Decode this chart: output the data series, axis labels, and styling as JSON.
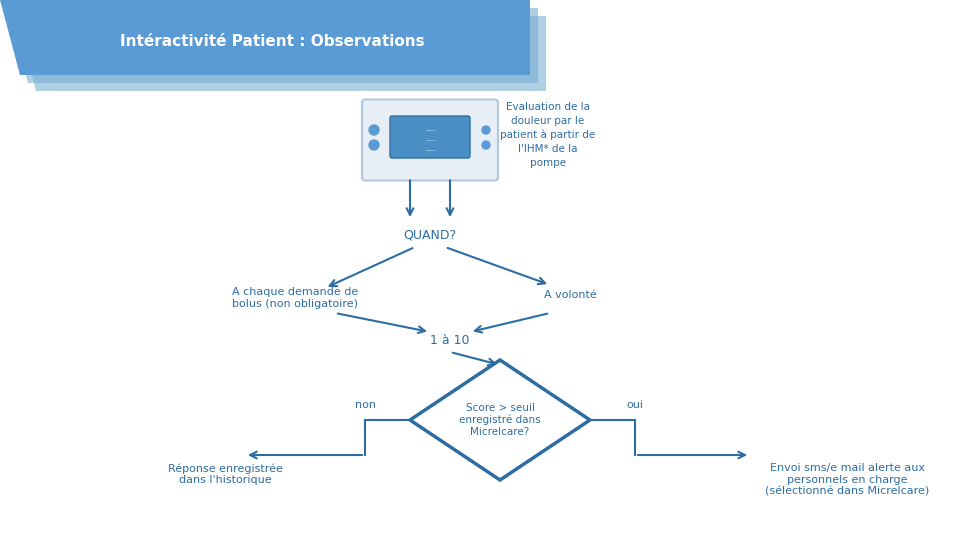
{
  "title": "Intéractivité Patient : Observations",
  "title_color": "#ffffff",
  "title_bg_color": "#5b9bd5",
  "title_bg_shadow": "#7bafd4",
  "bg_color": "#ffffff",
  "flow_color": "#2e6da4",
  "flow_text_color": "#2e6da4",
  "diamond_fill": "#ffffff",
  "diamond_edge": "#2e6da4",
  "top_text": "Evaluation de la\ndouleur par le\npatient à partir de\nl'IHM* de la\npompe",
  "quand_text": "QUAND?",
  "left_branch_text": "A chaque demande de\nbolus (non obligatoire)",
  "right_branch_text": "A volonté",
  "scale_text": "1 à 10",
  "diamond_text": "Score > seuil\nenregistré dans\nMicrelcare?",
  "non_text": "non",
  "oui_text": "oui",
  "left_result_text": "Réponse enregistrée\ndans l'historique",
  "right_result_text": "Envoi sms/e mail alerte aux\npersonnels en charge\n(sélectionné dans Micrelcare)"
}
